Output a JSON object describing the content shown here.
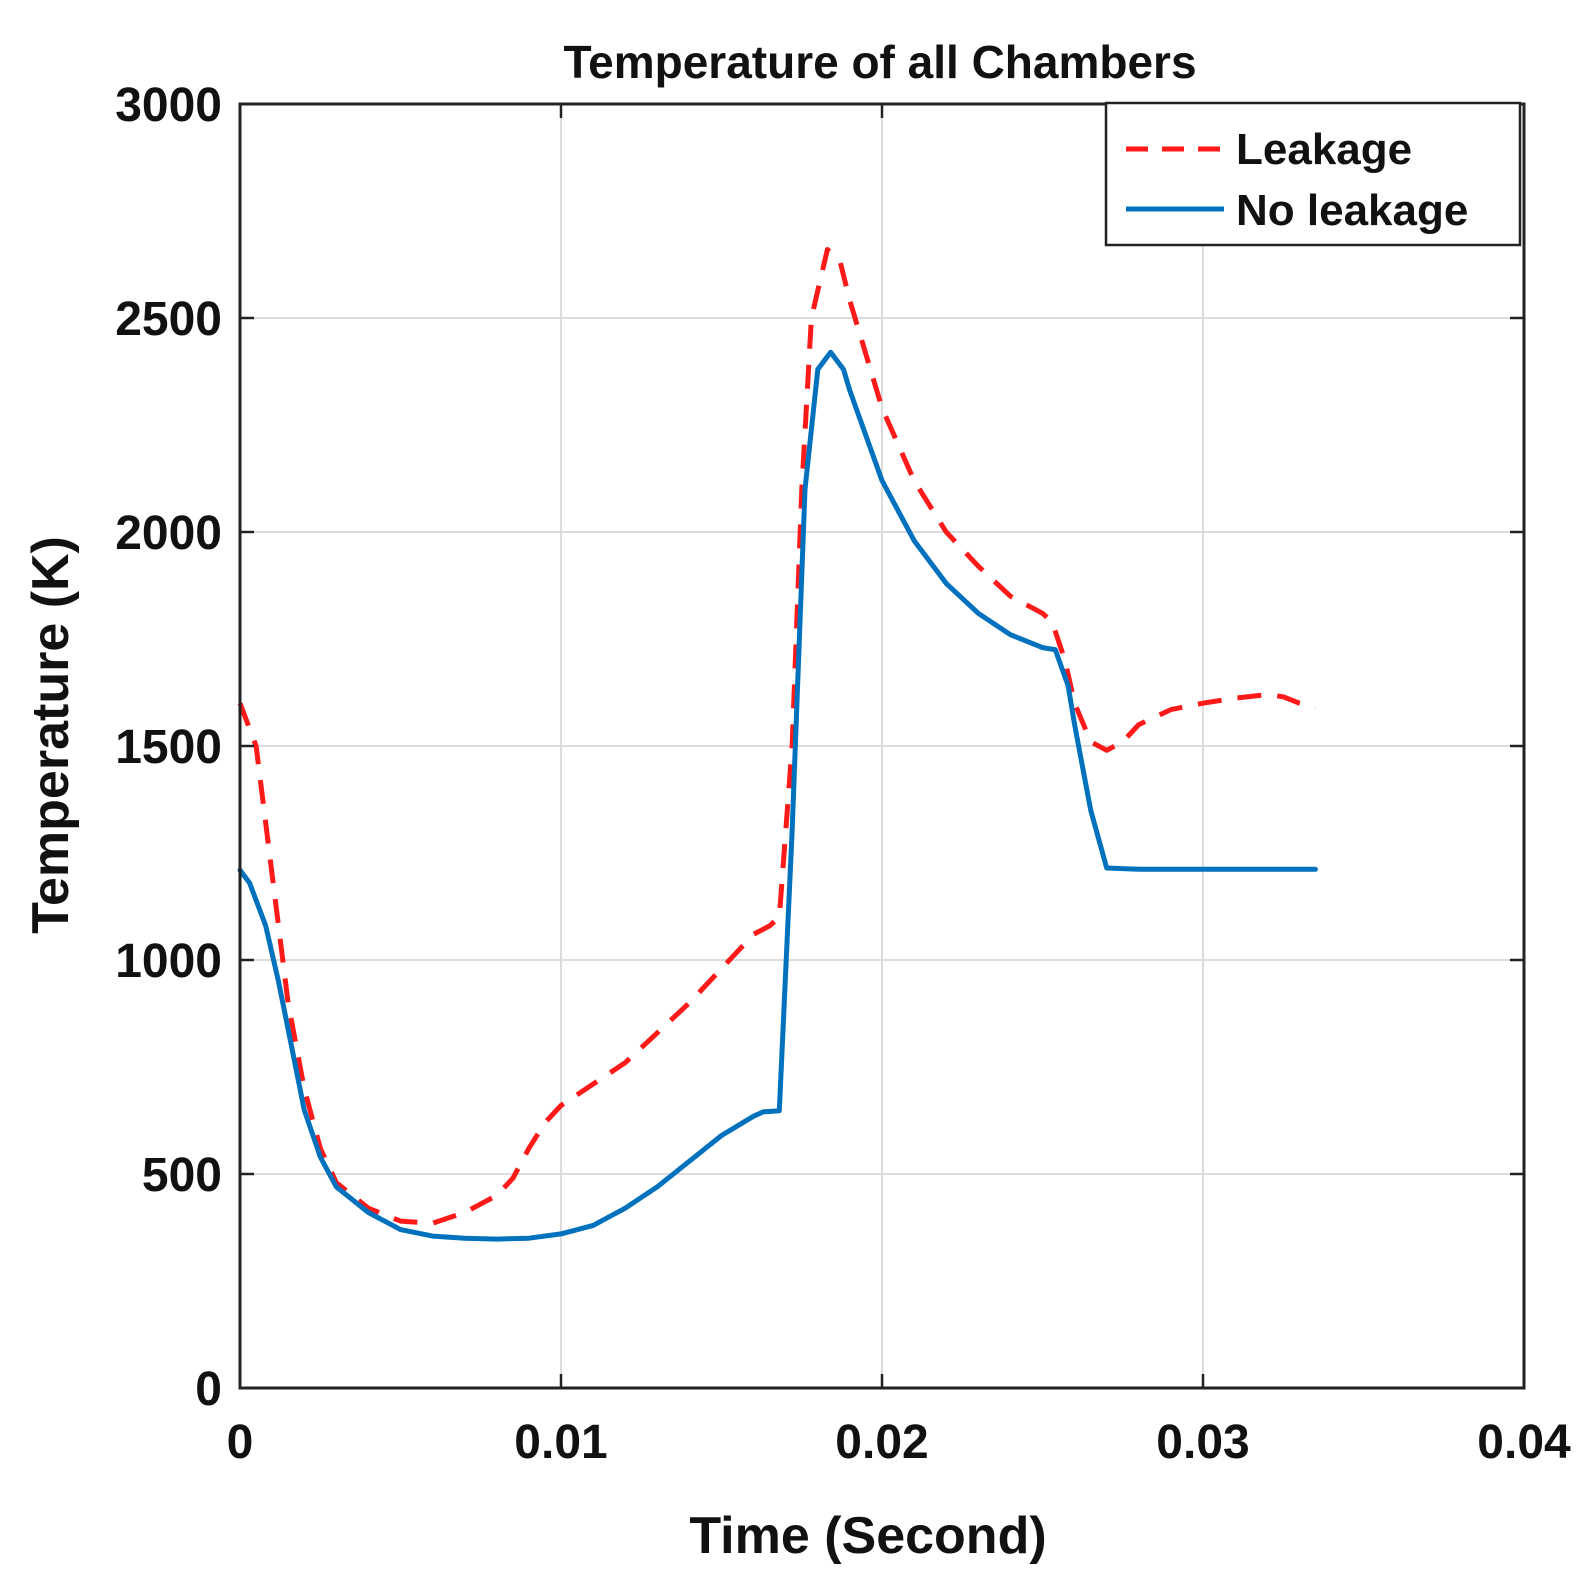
{
  "chart_data": {
    "type": "line",
    "title": "Temperature of all Chambers",
    "xlabel": "Time (Second)",
    "ylabel": "Temperature (K)",
    "xlim": [
      0,
      0.04
    ],
    "ylim": [
      0,
      3000
    ],
    "grid": true,
    "legend_position": "top-right",
    "xticks": [
      0,
      0.01,
      0.02,
      0.03,
      0.04
    ],
    "xtick_labels": [
      "0",
      "0.01",
      "0.02",
      "0.03",
      "0.04"
    ],
    "yticks": [
      0,
      500,
      1000,
      1500,
      2000,
      2500,
      3000
    ],
    "ytick_labels": [
      "0",
      "500",
      "1000",
      "1500",
      "2000",
      "2500",
      "3000"
    ],
    "series": [
      {
        "name": "Leakage",
        "color": "#ff1a1a",
        "style": "dashed",
        "points": [
          [
            0.0,
            1600
          ],
          [
            0.0005,
            1500
          ],
          [
            0.001,
            1200
          ],
          [
            0.0015,
            900
          ],
          [
            0.002,
            700
          ],
          [
            0.0025,
            560
          ],
          [
            0.003,
            480
          ],
          [
            0.004,
            420
          ],
          [
            0.005,
            390
          ],
          [
            0.006,
            385
          ],
          [
            0.007,
            410
          ],
          [
            0.008,
            450
          ],
          [
            0.0085,
            490
          ],
          [
            0.009,
            560
          ],
          [
            0.0095,
            620
          ],
          [
            0.01,
            660
          ],
          [
            0.011,
            710
          ],
          [
            0.012,
            760
          ],
          [
            0.013,
            830
          ],
          [
            0.014,
            900
          ],
          [
            0.015,
            980
          ],
          [
            0.016,
            1060
          ],
          [
            0.0165,
            1080
          ],
          [
            0.0168,
            1100
          ],
          [
            0.0172,
            1500
          ],
          [
            0.0175,
            2100
          ],
          [
            0.0178,
            2500
          ],
          [
            0.0183,
            2660
          ],
          [
            0.0187,
            2630
          ],
          [
            0.019,
            2540
          ],
          [
            0.02,
            2290
          ],
          [
            0.021,
            2120
          ],
          [
            0.022,
            2000
          ],
          [
            0.023,
            1920
          ],
          [
            0.024,
            1850
          ],
          [
            0.025,
            1810
          ],
          [
            0.0253,
            1790
          ],
          [
            0.0257,
            1700
          ],
          [
            0.026,
            1600
          ],
          [
            0.0265,
            1510
          ],
          [
            0.027,
            1490
          ],
          [
            0.0275,
            1510
          ],
          [
            0.028,
            1550
          ],
          [
            0.029,
            1585
          ],
          [
            0.03,
            1600
          ],
          [
            0.031,
            1612
          ],
          [
            0.032,
            1620
          ],
          [
            0.0325,
            1615
          ],
          [
            0.033,
            1600
          ],
          [
            0.0335,
            1590
          ]
        ]
      },
      {
        "name": "No leakage",
        "color": "#0072bd",
        "style": "solid",
        "points": [
          [
            0.0,
            1210
          ],
          [
            0.0003,
            1180
          ],
          [
            0.0008,
            1080
          ],
          [
            0.0012,
            950
          ],
          [
            0.0016,
            800
          ],
          [
            0.002,
            650
          ],
          [
            0.0025,
            540
          ],
          [
            0.003,
            470
          ],
          [
            0.004,
            410
          ],
          [
            0.005,
            370
          ],
          [
            0.006,
            355
          ],
          [
            0.007,
            350
          ],
          [
            0.008,
            348
          ],
          [
            0.009,
            350
          ],
          [
            0.01,
            360
          ],
          [
            0.011,
            380
          ],
          [
            0.012,
            420
          ],
          [
            0.013,
            470
          ],
          [
            0.014,
            530
          ],
          [
            0.015,
            590
          ],
          [
            0.016,
            635
          ],
          [
            0.0163,
            645
          ],
          [
            0.0168,
            648
          ],
          [
            0.0172,
            1300
          ],
          [
            0.0176,
            2100
          ],
          [
            0.018,
            2380
          ],
          [
            0.0184,
            2420
          ],
          [
            0.0188,
            2380
          ],
          [
            0.019,
            2330
          ],
          [
            0.02,
            2120
          ],
          [
            0.021,
            1980
          ],
          [
            0.022,
            1880
          ],
          [
            0.023,
            1810
          ],
          [
            0.024,
            1760
          ],
          [
            0.025,
            1730
          ],
          [
            0.0254,
            1725
          ],
          [
            0.0258,
            1640
          ],
          [
            0.026,
            1550
          ],
          [
            0.0265,
            1350
          ],
          [
            0.027,
            1215
          ],
          [
            0.028,
            1212
          ],
          [
            0.029,
            1212
          ],
          [
            0.03,
            1212
          ],
          [
            0.031,
            1212
          ],
          [
            0.032,
            1212
          ],
          [
            0.033,
            1212
          ],
          [
            0.0335,
            1212
          ]
        ]
      }
    ]
  }
}
